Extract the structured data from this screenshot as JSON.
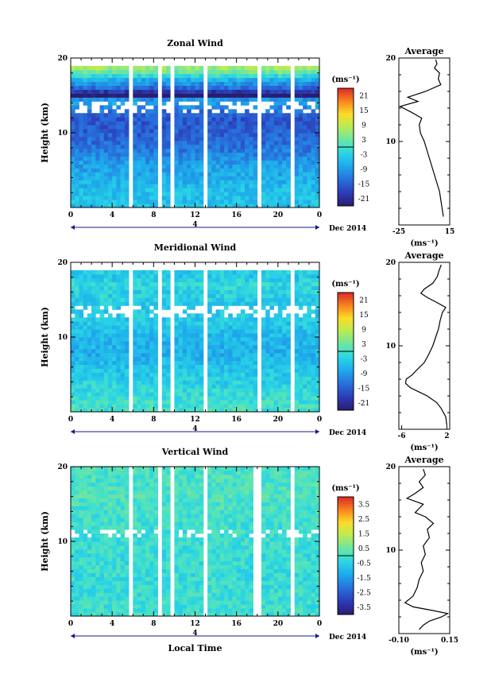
{
  "chart_data": [
    {
      "type": "heatmap",
      "title": "Zonal Wind",
      "ylabel": "Height (km)",
      "ylim": [
        0,
        20
      ],
      "yticks": [
        "10",
        "20"
      ],
      "xlim": [
        0,
        24
      ],
      "xticks": [
        "0",
        "4",
        "8",
        "12",
        "16",
        "20",
        "0"
      ],
      "day_label": "4",
      "date_label": "Dec 2014",
      "unit_label": "(ms⁻¹)",
      "colorbar_ticks": [
        "21",
        "15",
        "9",
        "3",
        "-3",
        "-9",
        "-15",
        "-21"
      ],
      "colorbar_range": [
        -24,
        24
      ],
      "missing_time_gaps": [
        [
          5.8,
          6.1
        ],
        [
          8.3,
          8.6
        ],
        [
          9.6,
          9.9
        ],
        [
          12.9,
          13.3
        ],
        [
          18.0,
          18.2
        ],
        [
          21.2,
          21.5
        ],
        [
          21.9,
          22.2
        ]
      ],
      "data_top_km": 19.2,
      "profile_heights": [
        0,
        2,
        4,
        6,
        8,
        10,
        12,
        13,
        14,
        14.5,
        15,
        16,
        17,
        18,
        19,
        20
      ],
      "mean_values": [
        -5,
        -5,
        -7,
        -9,
        -13,
        -15,
        -16,
        -13,
        -8,
        -10,
        -25,
        -14,
        -8,
        2,
        8,
        7
      ],
      "average": {
        "title": "Average",
        "xticks": [
          "-25",
          "15"
        ],
        "xlim": [
          -25,
          15
        ],
        "ylim": [
          0,
          20
        ],
        "yticks": [
          "10",
          "20"
        ],
        "xlabel": "(ms⁻¹)",
        "profile": [
          {
            "h": 1.0,
            "v": 10
          },
          {
            "h": 2.0,
            "v": 9
          },
          {
            "h": 3.0,
            "v": 8
          },
          {
            "h": 4.0,
            "v": 7
          },
          {
            "h": 5.0,
            "v": 5
          },
          {
            "h": 6.0,
            "v": 3
          },
          {
            "h": 7.0,
            "v": 1
          },
          {
            "h": 8.0,
            "v": -1
          },
          {
            "h": 9.0,
            "v": -3
          },
          {
            "h": 10.0,
            "v": -5
          },
          {
            "h": 11.0,
            "v": -8
          },
          {
            "h": 12.0,
            "v": -9
          },
          {
            "h": 12.8,
            "v": -7
          },
          {
            "h": 13.5,
            "v": -15
          },
          {
            "h": 14.2,
            "v": -24
          },
          {
            "h": 14.8,
            "v": -10
          },
          {
            "h": 15.3,
            "v": -18
          },
          {
            "h": 16.0,
            "v": -4
          },
          {
            "h": 16.8,
            "v": 8
          },
          {
            "h": 17.5,
            "v": 6
          },
          {
            "h": 18.2,
            "v": 7
          },
          {
            "h": 18.8,
            "v": 3
          },
          {
            "h": 19.3,
            "v": 5
          },
          {
            "h": 19.8,
            "v": 4
          }
        ]
      }
    },
    {
      "type": "heatmap",
      "title": "Meridional Wind",
      "ylabel": "Height (km)",
      "ylim": [
        0,
        20
      ],
      "yticks": [
        "10",
        "20"
      ],
      "xlim": [
        0,
        24
      ],
      "xticks": [
        "0",
        "4",
        "8",
        "12",
        "16",
        "20",
        "0"
      ],
      "day_label": "4",
      "date_label": "Dec 2014",
      "unit_label": "(ms⁻¹)",
      "colorbar_ticks": [
        "21",
        "15",
        "9",
        "3",
        "-3",
        "-9",
        "-15",
        "-21"
      ],
      "colorbar_range": [
        -24,
        24
      ],
      "missing_time_gaps": [
        [
          5.8,
          6.1
        ],
        [
          8.3,
          8.6
        ],
        [
          9.6,
          9.9
        ],
        [
          12.9,
          13.3
        ],
        [
          18.0,
          18.2
        ],
        [
          21.2,
          21.5
        ],
        [
          21.9,
          22.2
        ]
      ],
      "data_top_km": 18.8,
      "profile_heights": [
        0,
        2,
        4,
        6,
        8,
        10,
        12,
        14,
        16,
        17,
        18,
        20
      ],
      "mean_values": [
        0,
        -1,
        -3,
        -5,
        -7,
        -6,
        -4,
        -4,
        -3,
        -2,
        -4,
        -3
      ],
      "average": {
        "title": "Average",
        "xticks": [
          "-6",
          "2"
        ],
        "xlim": [
          -6.5,
          2.5
        ],
        "ylim": [
          0,
          20
        ],
        "yticks": [
          "10",
          "20"
        ],
        "xlabel": "(ms⁻¹)",
        "profile": [
          {
            "h": 0.5,
            "v": 2.0
          },
          {
            "h": 1.5,
            "v": 1.8
          },
          {
            "h": 2.5,
            "v": 1.0
          },
          {
            "h": 3.2,
            "v": 0.2
          },
          {
            "h": 4.0,
            "v": -1.5
          },
          {
            "h": 4.5,
            "v": -3.0
          },
          {
            "h": 5.0,
            "v": -4.5
          },
          {
            "h": 5.5,
            "v": -5.3
          },
          {
            "h": 6.0,
            "v": -5.2
          },
          {
            "h": 6.5,
            "v": -4.2
          },
          {
            "h": 7.2,
            "v": -3.2
          },
          {
            "h": 8.0,
            "v": -2.0
          },
          {
            "h": 9.0,
            "v": -1.2
          },
          {
            "h": 10.0,
            "v": -0.5
          },
          {
            "h": 11.0,
            "v": 0.0
          },
          {
            "h": 12.0,
            "v": 0.5
          },
          {
            "h": 13.0,
            "v": 0.8
          },
          {
            "h": 14.0,
            "v": 1.2
          },
          {
            "h": 14.6,
            "v": 1.8
          },
          {
            "h": 15.2,
            "v": 0.2
          },
          {
            "h": 15.8,
            "v": -1.5
          },
          {
            "h": 16.3,
            "v": -2.6
          },
          {
            "h": 16.8,
            "v": -2.0
          },
          {
            "h": 17.5,
            "v": -0.5
          },
          {
            "h": 18.3,
            "v": 0.3
          },
          {
            "h": 19.0,
            "v": 0.6
          },
          {
            "h": 19.7,
            "v": 1.0
          }
        ]
      }
    },
    {
      "type": "heatmap",
      "title": "Vertical Wind",
      "xlabel": "Local Time",
      "ylabel": "Height (km)",
      "ylim": [
        0,
        20
      ],
      "yticks": [
        "10",
        "20"
      ],
      "xlim": [
        0,
        24
      ],
      "xticks": [
        "0",
        "4",
        "8",
        "12",
        "16",
        "20",
        "0"
      ],
      "day_label": "4",
      "date_label": "Dec 2014",
      "unit_label": "(ms⁻¹)",
      "colorbar_ticks": [
        "3.5",
        "2.5",
        "1.5",
        "0.5",
        "-0.5",
        "-1.5",
        "-2.5",
        "-3.5"
      ],
      "colorbar_range": [
        -4,
        4
      ],
      "missing_time_gaps": [
        [
          5.8,
          6.1
        ],
        [
          8.3,
          8.6
        ],
        [
          9.6,
          9.9
        ],
        [
          12.9,
          13.3
        ],
        [
          17.6,
          18.2
        ],
        [
          21.2,
          21.5
        ],
        [
          21.9,
          22.2
        ]
      ],
      "data_top_km": 20.0,
      "profile_heights": [
        0,
        4,
        8,
        12,
        16,
        20
      ],
      "mean_values": [
        -0.1,
        -0.2,
        -0.2,
        -0.1,
        0.1,
        0.0
      ],
      "average": {
        "title": "Average",
        "xticks": [
          "-0.10",
          "0.15"
        ],
        "xlim": [
          -0.1,
          0.15
        ],
        "ylim": [
          0,
          20
        ],
        "yticks": [
          "10",
          "20"
        ],
        "xlabel": "(ms⁻¹)",
        "profile": [
          {
            "h": 0.5,
            "v": 0.0
          },
          {
            "h": 1.0,
            "v": 0.02
          },
          {
            "h": 1.5,
            "v": 0.05
          },
          {
            "h": 2.0,
            "v": 0.11
          },
          {
            "h": 2.4,
            "v": 0.14
          },
          {
            "h": 2.8,
            "v": 0.06
          },
          {
            "h": 3.2,
            "v": -0.03
          },
          {
            "h": 3.7,
            "v": -0.07
          },
          {
            "h": 4.5,
            "v": -0.03
          },
          {
            "h": 5.5,
            "v": -0.01
          },
          {
            "h": 6.5,
            "v": 0.0
          },
          {
            "h": 7.5,
            "v": 0.02
          },
          {
            "h": 8.5,
            "v": 0.01
          },
          {
            "h": 9.5,
            "v": 0.03
          },
          {
            "h": 10.5,
            "v": 0.02
          },
          {
            "h": 11.5,
            "v": 0.05
          },
          {
            "h": 12.5,
            "v": 0.04
          },
          {
            "h": 13.2,
            "v": 0.07
          },
          {
            "h": 14.0,
            "v": 0.03
          },
          {
            "h": 14.5,
            "v": -0.02
          },
          {
            "h": 15.0,
            "v": 0.0
          },
          {
            "h": 15.5,
            "v": 0.02
          },
          {
            "h": 16.2,
            "v": -0.06
          },
          {
            "h": 16.8,
            "v": -0.02
          },
          {
            "h": 17.5,
            "v": 0.02
          },
          {
            "h": 18.2,
            "v": 0.0
          },
          {
            "h": 19.0,
            "v": 0.03
          },
          {
            "h": 19.7,
            "v": 0.02
          }
        ]
      }
    }
  ]
}
